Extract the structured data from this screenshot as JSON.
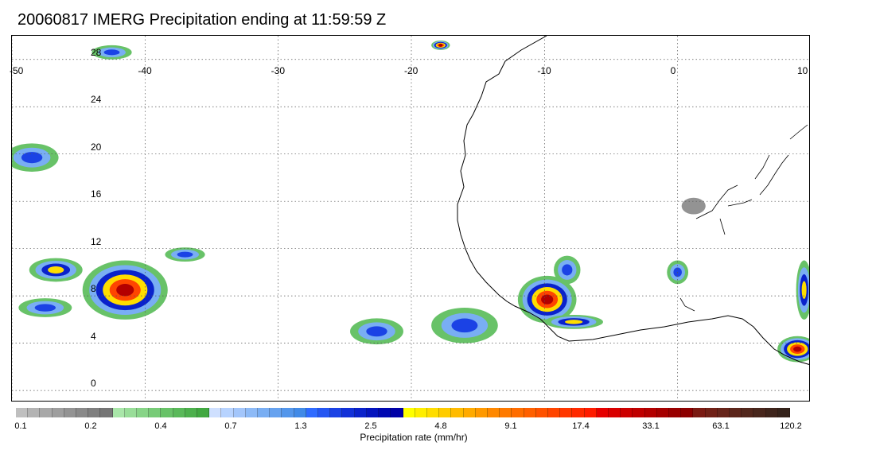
{
  "title": "20060817 IMERG Precipitation ending at 11:59:59 Z",
  "map": {
    "lon_range": [
      -50,
      10
    ],
    "lat_range": [
      -1,
      30
    ],
    "lon_labels": [
      "-50",
      "-40",
      "-30",
      "-20",
      "-10",
      "0",
      "10"
    ],
    "lon_values": [
      -50,
      -40,
      -30,
      -20,
      -10,
      0,
      10
    ],
    "lat_labels": [
      "28",
      "24",
      "20",
      "16",
      "12",
      "8",
      "4",
      "0"
    ],
    "lat_values": [
      28,
      24,
      20,
      16,
      12,
      8,
      4,
      0
    ],
    "grid": "dotted",
    "coastline": "West Africa coast",
    "precip_features": [
      {
        "lon": -9.8,
        "lat": 7.7,
        "rlon": 2.2,
        "rlat": 2.0,
        "peak": "high"
      },
      {
        "lon": -41.5,
        "lat": 8.5,
        "rlon": 3.2,
        "rlat": 2.5,
        "peak": "high"
      },
      {
        "lon": -46.7,
        "lat": 10.2,
        "rlon": 2.0,
        "rlat": 1.0,
        "peak": "medium"
      },
      {
        "lon": -47.5,
        "lat": 7.0,
        "rlon": 2.0,
        "rlat": 0.8,
        "peak": "low"
      },
      {
        "lon": -48.5,
        "lat": 19.7,
        "rlon": 2.0,
        "rlat": 1.2,
        "peak": "low"
      },
      {
        "lon": -42.5,
        "lat": 28.6,
        "rlon": 1.5,
        "rlat": 0.6,
        "peak": "low"
      },
      {
        "lon": -17.8,
        "lat": 29.2,
        "rlon": 0.7,
        "rlat": 0.4,
        "peak": "high"
      },
      {
        "lon": -22.6,
        "lat": 5.0,
        "rlon": 2.0,
        "rlat": 1.1,
        "peak": "low"
      },
      {
        "lon": -16.0,
        "lat": 5.5,
        "rlon": 2.5,
        "rlat": 1.5,
        "peak": "low"
      },
      {
        "lon": -8.3,
        "lat": 10.2,
        "rlon": 1.0,
        "rlat": 1.2,
        "peak": "low"
      },
      {
        "lon": -7.8,
        "lat": 5.8,
        "rlon": 2.2,
        "rlat": 0.6,
        "peak": "medium"
      },
      {
        "lon": 9.0,
        "lat": 3.5,
        "rlon": 1.5,
        "rlat": 1.1,
        "peak": "high"
      },
      {
        "lon": 9.5,
        "lat": 8.5,
        "rlon": 0.6,
        "rlat": 2.5,
        "peak": "medium"
      },
      {
        "lon": 1.2,
        "lat": 15.6,
        "rlon": 0.9,
        "rlat": 0.7,
        "peak": "none"
      },
      {
        "lon": 0.0,
        "lat": 10.0,
        "rlon": 0.8,
        "rlat": 1.0,
        "peak": "low"
      },
      {
        "lon": -37.0,
        "lat": 11.5,
        "rlon": 1.5,
        "rlat": 0.6,
        "peak": "low"
      }
    ]
  },
  "colorbar": {
    "title": "Precipitation rate (mm/hr)",
    "tick_labels": [
      "0.1",
      "0.2",
      "0.4",
      "0.7",
      "1.3",
      "2.5",
      "4.8",
      "9.1",
      "17.4",
      "33.1",
      "63.1",
      "120.2"
    ],
    "colors": [
      "#bfbfbf",
      "#b3b3b3",
      "#a8a8a8",
      "#9e9e9e",
      "#939393",
      "#898989",
      "#7f7f7f",
      "#757575",
      "#a9e6a9",
      "#98dd98",
      "#87d487",
      "#77cb77",
      "#68c268",
      "#5ab95a",
      "#4db04d",
      "#41a841",
      "#cfe0ff",
      "#b7d3ff",
      "#a3c6fb",
      "#8dbaf7",
      "#79aef3",
      "#66a2ef",
      "#5396eb",
      "#418ae7",
      "#2f6bff",
      "#2556f2",
      "#1b42e5",
      "#1231d8",
      "#0a22cb",
      "#0414be",
      "#0008b2",
      "#0000a6",
      "#ffff00",
      "#ffee00",
      "#ffdd00",
      "#ffcc00",
      "#ffbb00",
      "#ffaa00",
      "#ff9900",
      "#ff8800",
      "#ff7a00",
      "#ff6d00",
      "#ff6000",
      "#ff5200",
      "#ff4500",
      "#ff3700",
      "#ff2a00",
      "#ff1c00",
      "#e60000",
      "#d90000",
      "#cc0000",
      "#bf0000",
      "#b30000",
      "#a60000",
      "#990000",
      "#8c0000",
      "#7a1a12",
      "#702016",
      "#66241a",
      "#5c261b",
      "#52271c",
      "#48261c",
      "#3e241b",
      "#34221a"
    ]
  }
}
